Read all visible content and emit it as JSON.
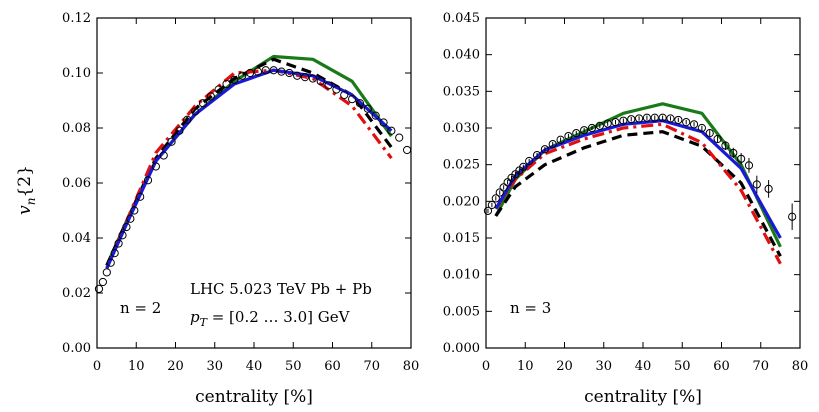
{
  "chart_data": [
    {
      "type": "line",
      "panel": "left",
      "xlabel": "centrality [%]",
      "ylabel": "v_n{2}",
      "xlim": [
        0,
        80
      ],
      "ylim": [
        0,
        0.12
      ],
      "xticks": [
        "0",
        "10",
        "20",
        "30",
        "40",
        "50",
        "60",
        "70",
        "80"
      ],
      "yticks": [
        "0.00",
        "0.02",
        "0.04",
        "0.06",
        "0.08",
        "0.10",
        "0.12"
      ],
      "annotations": [
        "LHC 5.023 TeV Pb + Pb",
        "p_T = [0.2 ... 3.0] GeV",
        "n = 2"
      ],
      "series": [
        {
          "style": "solid-green",
          "color": "#1a7a1a",
          "x": [
            2.5,
            7.5,
            15,
            25,
            35,
            45,
            55,
            65,
            75
          ],
          "y": [
            0.03,
            0.046,
            0.068,
            0.085,
            0.097,
            0.106,
            0.105,
            0.097,
            0.077
          ]
        },
        {
          "style": "dashed-black",
          "color": "#000000",
          "x": [
            2.5,
            7.5,
            15,
            25,
            35,
            45,
            55,
            65,
            75
          ],
          "y": [
            0.03,
            0.046,
            0.069,
            0.087,
            0.098,
            0.105,
            0.1,
            0.092,
            0.073
          ]
        },
        {
          "style": "dashdot-red",
          "color": "#e01010",
          "x": [
            2.5,
            7.5,
            15,
            25,
            35,
            45,
            55,
            65,
            75
          ],
          "y": [
            0.029,
            0.046,
            0.071,
            0.088,
            0.1,
            0.101,
            0.098,
            0.088,
            0.069
          ]
        },
        {
          "style": "solid-blue",
          "color": "#1a1ad6",
          "x": [
            2.5,
            7.5,
            15,
            25,
            35,
            45,
            55,
            65,
            75
          ],
          "y": [
            0.029,
            0.045,
            0.068,
            0.085,
            0.096,
            0.101,
            0.099,
            0.092,
            0.079
          ]
        },
        {
          "style": "markers-circle",
          "color": "#000000",
          "x": [
            0.5,
            1.5,
            2.5,
            3.5,
            4.5,
            5.5,
            6.5,
            7.5,
            8.5,
            9.5,
            11,
            13,
            15,
            17,
            19,
            21,
            23,
            25,
            27,
            29,
            31,
            33,
            35,
            37,
            39,
            41,
            43,
            45,
            47,
            49,
            51,
            53,
            55,
            57,
            59,
            61,
            63,
            65,
            67,
            69,
            71,
            73,
            75,
            77,
            79
          ],
          "y": [
            0.0215,
            0.024,
            0.0275,
            0.031,
            0.0345,
            0.038,
            0.041,
            0.044,
            0.047,
            0.05,
            0.055,
            0.061,
            0.066,
            0.07,
            0.075,
            0.079,
            0.083,
            0.086,
            0.089,
            0.0915,
            0.094,
            0.096,
            0.0975,
            0.099,
            0.1,
            0.1005,
            0.101,
            0.101,
            0.1005,
            0.1,
            0.099,
            0.0985,
            0.098,
            0.097,
            0.0955,
            0.094,
            0.092,
            0.0905,
            0.089,
            0.087,
            0.0845,
            0.082,
            0.079,
            0.0765,
            0.072
          ]
        }
      ]
    },
    {
      "type": "line",
      "panel": "right",
      "xlabel": "centrality [%]",
      "xlim": [
        0,
        80
      ],
      "ylim": [
        0,
        0.045
      ],
      "xticks": [
        "0",
        "10",
        "20",
        "30",
        "40",
        "50",
        "60",
        "70",
        "80"
      ],
      "yticks": [
        "0.000",
        "0.005",
        "0.010",
        "0.015",
        "0.020",
        "0.025",
        "0.030",
        "0.035",
        "0.040",
        "0.045"
      ],
      "annotations": [
        "n = 3"
      ],
      "series": [
        {
          "style": "solid-green",
          "color": "#1a7a1a",
          "x": [
            2.5,
            7.5,
            15,
            25,
            35,
            45,
            55,
            65,
            75
          ],
          "y": [
            0.018,
            0.023,
            0.027,
            0.0295,
            0.032,
            0.0333,
            0.032,
            0.025,
            0.0138
          ]
        },
        {
          "style": "dashed-black",
          "color": "#000000",
          "x": [
            2.5,
            7.5,
            15,
            25,
            35,
            45,
            55,
            65,
            75
          ],
          "y": [
            0.018,
            0.022,
            0.025,
            0.0273,
            0.029,
            0.0295,
            0.0275,
            0.0225,
            0.0125
          ]
        },
        {
          "style": "dashdot-red",
          "color": "#e01010",
          "x": [
            2.5,
            7.5,
            15,
            25,
            35,
            45,
            55,
            65,
            75
          ],
          "y": [
            0.019,
            0.023,
            0.0265,
            0.0285,
            0.03,
            0.0305,
            0.028,
            0.0215,
            0.0115
          ]
        },
        {
          "style": "solid-blue",
          "color": "#1a1ad6",
          "x": [
            2.5,
            7.5,
            15,
            25,
            35,
            45,
            55,
            65,
            75
          ],
          "y": [
            0.019,
            0.0235,
            0.027,
            0.029,
            0.0305,
            0.031,
            0.0295,
            0.0245,
            0.015
          ]
        },
        {
          "style": "markers-circle",
          "color": "#000000",
          "x": [
            0.5,
            1.5,
            2.5,
            3.5,
            4.5,
            5.5,
            6.5,
            7.5,
            8.5,
            9.5,
            11,
            13,
            15,
            17,
            19,
            21,
            23,
            25,
            27,
            29,
            31,
            33,
            35,
            37,
            39,
            41,
            43,
            45,
            47,
            49,
            51,
            53,
            55,
            57,
            59,
            61,
            63,
            65,
            67,
            69,
            72,
            78
          ],
          "y": [
            0.0187,
            0.0195,
            0.0204,
            0.0212,
            0.0219,
            0.0226,
            0.0232,
            0.0237,
            0.0242,
            0.0247,
            0.0255,
            0.0263,
            0.0271,
            0.0278,
            0.0284,
            0.0289,
            0.0293,
            0.0297,
            0.03,
            0.0303,
            0.0306,
            0.0308,
            0.031,
            0.0312,
            0.0313,
            0.0314,
            0.0314,
            0.0314,
            0.0313,
            0.0311,
            0.0308,
            0.0305,
            0.03,
            0.0293,
            0.0285,
            0.0276,
            0.0266,
            0.0258,
            0.0249,
            0.0223,
            0.0217,
            0.0179
          ],
          "yerr": [
            0.0003,
            0.0003,
            0.0003,
            0.0003,
            0.0003,
            0.0003,
            0.0003,
            0.0003,
            0.0003,
            0.0003,
            0.0003,
            0.0003,
            0.0003,
            0.0003,
            0.0003,
            0.0003,
            0.0003,
            0.0003,
            0.0003,
            0.0003,
            0.0003,
            0.0003,
            0.0003,
            0.0003,
            0.0003,
            0.0003,
            0.0003,
            0.0003,
            0.0003,
            0.0003,
            0.0003,
            0.0003,
            0.0003,
            0.0004,
            0.0005,
            0.0006,
            0.0007,
            0.0008,
            0.001,
            0.0012,
            0.0012,
            0.0018
          ]
        }
      ]
    }
  ]
}
